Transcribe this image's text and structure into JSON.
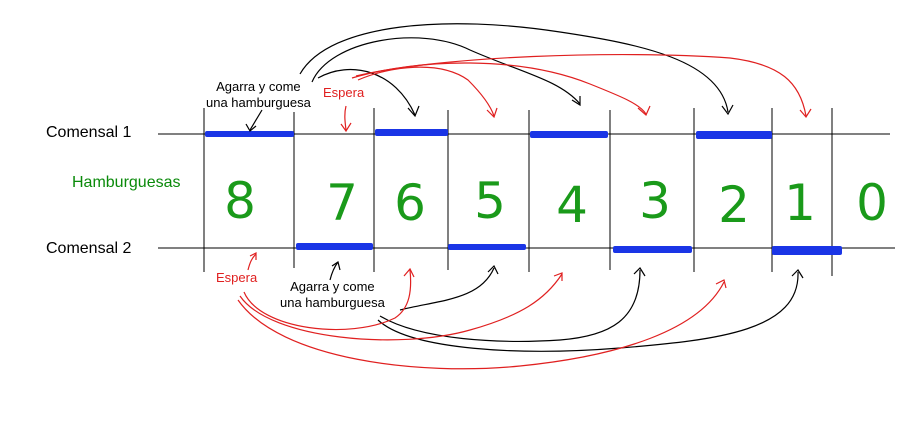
{
  "rows": {
    "diner1": "Comensal 1",
    "burgers": "Hamburguesas",
    "diner2": "Comensal 2"
  },
  "annotations": {
    "grab_top_line1": "Agarra y come",
    "grab_top_line2": "una hamburguesa",
    "wait_top": "Espera",
    "grab_bottom_line1": "Agarra y come",
    "grab_bottom_line2": "una hamburguesa",
    "wait_bottom": "Espera"
  },
  "burger_counts": [
    "8",
    "7",
    "6",
    "5",
    "4",
    "3",
    "2",
    "1",
    "0"
  ],
  "colors": {
    "grid": "#000000",
    "active_bar": "#1a35e6",
    "digits": "#1a9a1a",
    "wait_arrows": "#e02020",
    "grab_arrows": "#000000",
    "burgers_label": "#0a8a0a",
    "wait_label": "#e02020"
  },
  "turns": {
    "diner1_active_slots": [
      0,
      2,
      4,
      6
    ],
    "diner2_active_slots": [
      1,
      3,
      5,
      7
    ]
  }
}
